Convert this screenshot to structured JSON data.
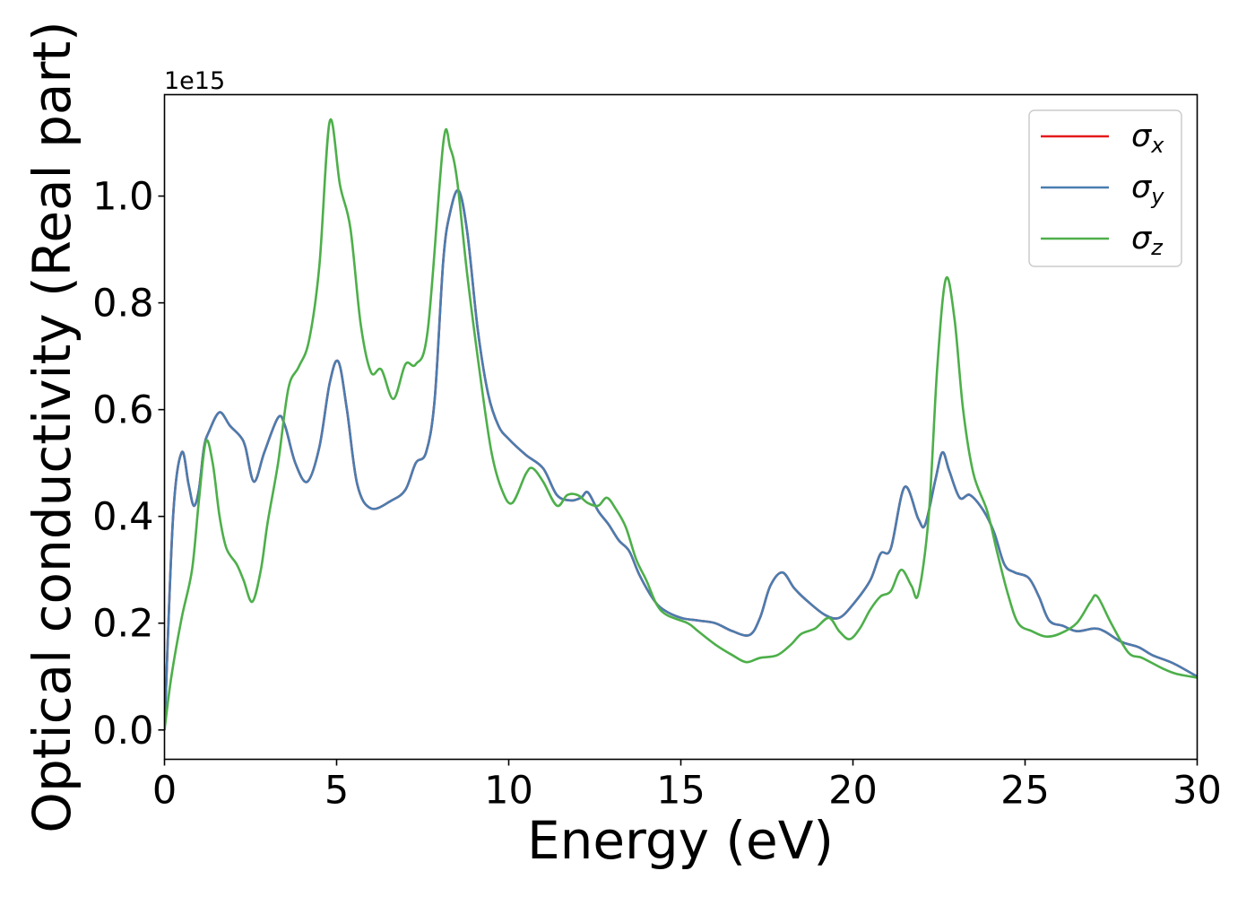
{
  "chart_data": {
    "type": "line",
    "xlabel": "Energy (eV)",
    "ylabel": "Optical conductivity (Real part)",
    "y_offset_text": "1e15",
    "xlim": [
      0,
      30
    ],
    "ylim": [
      -0.055,
      1.19
    ],
    "x_ticks": [
      0,
      5,
      10,
      15,
      20,
      25,
      30
    ],
    "x_tick_labels": [
      "0",
      "5",
      "10",
      "15",
      "20",
      "25",
      "30"
    ],
    "y_ticks": [
      0.0,
      0.2,
      0.4,
      0.6,
      0.8,
      1.0
    ],
    "y_tick_labels": [
      "0.0",
      "0.2",
      "0.4",
      "0.6",
      "0.8",
      "1.0"
    ],
    "grid": false,
    "legend_position": "top-right",
    "series": [
      {
        "name": "σx",
        "symbol": "σ",
        "subscript": "x",
        "color": "#e41a1c",
        "points": [
          [
            0,
            0
          ],
          [
            0.25,
            0.4
          ],
          [
            0.5,
            0.52
          ],
          [
            0.7,
            0.46
          ],
          [
            0.85,
            0.42
          ],
          [
            1.0,
            0.45
          ],
          [
            1.15,
            0.53
          ],
          [
            1.3,
            0.56
          ],
          [
            1.6,
            0.595
          ],
          [
            1.9,
            0.57
          ],
          [
            2.2,
            0.55
          ],
          [
            2.35,
            0.53
          ],
          [
            2.6,
            0.465
          ],
          [
            2.9,
            0.52
          ],
          [
            3.3,
            0.585
          ],
          [
            3.5,
            0.57
          ],
          [
            3.8,
            0.5
          ],
          [
            4.15,
            0.465
          ],
          [
            4.5,
            0.53
          ],
          [
            4.8,
            0.65
          ],
          [
            5.05,
            0.69
          ],
          [
            5.3,
            0.6
          ],
          [
            5.6,
            0.46
          ],
          [
            6.0,
            0.415
          ],
          [
            6.6,
            0.43
          ],
          [
            7.0,
            0.45
          ],
          [
            7.3,
            0.5
          ],
          [
            7.6,
            0.52
          ],
          [
            7.85,
            0.62
          ],
          [
            8.1,
            0.88
          ],
          [
            8.3,
            0.97
          ],
          [
            8.55,
            1.01
          ],
          [
            8.8,
            0.93
          ],
          [
            9.1,
            0.75
          ],
          [
            9.4,
            0.63
          ],
          [
            9.7,
            0.57
          ],
          [
            10.0,
            0.545
          ],
          [
            10.5,
            0.515
          ],
          [
            11.0,
            0.49
          ],
          [
            11.4,
            0.44
          ],
          [
            11.8,
            0.43
          ],
          [
            12.1,
            0.435
          ],
          [
            12.3,
            0.445
          ],
          [
            12.6,
            0.41
          ],
          [
            12.9,
            0.385
          ],
          [
            13.2,
            0.355
          ],
          [
            13.5,
            0.335
          ],
          [
            13.8,
            0.29
          ],
          [
            14.2,
            0.245
          ],
          [
            14.5,
            0.225
          ],
          [
            15.0,
            0.21
          ],
          [
            15.5,
            0.205
          ],
          [
            16.0,
            0.2
          ],
          [
            16.5,
            0.185
          ],
          [
            17.0,
            0.178
          ],
          [
            17.3,
            0.21
          ],
          [
            17.6,
            0.27
          ],
          [
            17.95,
            0.295
          ],
          [
            18.3,
            0.265
          ],
          [
            18.7,
            0.24
          ],
          [
            19.2,
            0.215
          ],
          [
            19.6,
            0.21
          ],
          [
            20.0,
            0.235
          ],
          [
            20.5,
            0.28
          ],
          [
            20.8,
            0.33
          ],
          [
            21.1,
            0.34
          ],
          [
            21.5,
            0.455
          ],
          [
            21.9,
            0.395
          ],
          [
            22.1,
            0.385
          ],
          [
            22.4,
            0.47
          ],
          [
            22.6,
            0.52
          ],
          [
            22.8,
            0.485
          ],
          [
            23.1,
            0.435
          ],
          [
            23.4,
            0.44
          ],
          [
            23.8,
            0.41
          ],
          [
            24.1,
            0.37
          ],
          [
            24.4,
            0.31
          ],
          [
            24.7,
            0.295
          ],
          [
            25.1,
            0.285
          ],
          [
            25.4,
            0.25
          ],
          [
            25.7,
            0.205
          ],
          [
            26.1,
            0.195
          ],
          [
            26.5,
            0.185
          ],
          [
            27.0,
            0.19
          ],
          [
            27.3,
            0.185
          ],
          [
            27.8,
            0.165
          ],
          [
            28.3,
            0.155
          ],
          [
            28.7,
            0.14
          ],
          [
            29.3,
            0.125
          ],
          [
            30.0,
            0.1
          ]
        ]
      },
      {
        "name": "σy",
        "symbol": "σ",
        "subscript": "y",
        "color": "#4a7db0",
        "points": [
          [
            0,
            0
          ],
          [
            0.25,
            0.4
          ],
          [
            0.5,
            0.52
          ],
          [
            0.7,
            0.46
          ],
          [
            0.85,
            0.42
          ],
          [
            1.0,
            0.45
          ],
          [
            1.15,
            0.53
          ],
          [
            1.3,
            0.56
          ],
          [
            1.6,
            0.595
          ],
          [
            1.9,
            0.57
          ],
          [
            2.2,
            0.55
          ],
          [
            2.35,
            0.53
          ],
          [
            2.6,
            0.465
          ],
          [
            2.9,
            0.52
          ],
          [
            3.3,
            0.585
          ],
          [
            3.5,
            0.57
          ],
          [
            3.8,
            0.5
          ],
          [
            4.15,
            0.465
          ],
          [
            4.5,
            0.53
          ],
          [
            4.8,
            0.65
          ],
          [
            5.05,
            0.69
          ],
          [
            5.3,
            0.6
          ],
          [
            5.6,
            0.46
          ],
          [
            6.0,
            0.415
          ],
          [
            6.6,
            0.43
          ],
          [
            7.0,
            0.45
          ],
          [
            7.3,
            0.5
          ],
          [
            7.6,
            0.52
          ],
          [
            7.85,
            0.62
          ],
          [
            8.1,
            0.88
          ],
          [
            8.3,
            0.97
          ],
          [
            8.55,
            1.01
          ],
          [
            8.8,
            0.93
          ],
          [
            9.1,
            0.75
          ],
          [
            9.4,
            0.63
          ],
          [
            9.7,
            0.57
          ],
          [
            10.0,
            0.545
          ],
          [
            10.5,
            0.515
          ],
          [
            11.0,
            0.49
          ],
          [
            11.4,
            0.44
          ],
          [
            11.8,
            0.43
          ],
          [
            12.1,
            0.435
          ],
          [
            12.3,
            0.445
          ],
          [
            12.6,
            0.41
          ],
          [
            12.9,
            0.385
          ],
          [
            13.2,
            0.355
          ],
          [
            13.5,
            0.335
          ],
          [
            13.8,
            0.29
          ],
          [
            14.2,
            0.245
          ],
          [
            14.5,
            0.225
          ],
          [
            15.0,
            0.21
          ],
          [
            15.5,
            0.205
          ],
          [
            16.0,
            0.2
          ],
          [
            16.5,
            0.185
          ],
          [
            17.0,
            0.178
          ],
          [
            17.3,
            0.21
          ],
          [
            17.6,
            0.27
          ],
          [
            17.95,
            0.295
          ],
          [
            18.3,
            0.265
          ],
          [
            18.7,
            0.24
          ],
          [
            19.2,
            0.215
          ],
          [
            19.6,
            0.21
          ],
          [
            20.0,
            0.235
          ],
          [
            20.5,
            0.28
          ],
          [
            20.8,
            0.33
          ],
          [
            21.1,
            0.34
          ],
          [
            21.5,
            0.455
          ],
          [
            21.9,
            0.395
          ],
          [
            22.1,
            0.385
          ],
          [
            22.4,
            0.47
          ],
          [
            22.6,
            0.52
          ],
          [
            22.8,
            0.485
          ],
          [
            23.1,
            0.435
          ],
          [
            23.4,
            0.44
          ],
          [
            23.8,
            0.41
          ],
          [
            24.1,
            0.37
          ],
          [
            24.4,
            0.31
          ],
          [
            24.7,
            0.295
          ],
          [
            25.1,
            0.285
          ],
          [
            25.4,
            0.25
          ],
          [
            25.7,
            0.205
          ],
          [
            26.1,
            0.195
          ],
          [
            26.5,
            0.185
          ],
          [
            27.0,
            0.19
          ],
          [
            27.3,
            0.185
          ],
          [
            27.8,
            0.165
          ],
          [
            28.3,
            0.155
          ],
          [
            28.7,
            0.14
          ],
          [
            29.3,
            0.125
          ],
          [
            30.0,
            0.1
          ]
        ]
      },
      {
        "name": "σz",
        "symbol": "σ",
        "subscript": "z",
        "color": "#4daf4a",
        "points": [
          [
            0,
            0
          ],
          [
            0.2,
            0.1
          ],
          [
            0.5,
            0.21
          ],
          [
            0.8,
            0.3
          ],
          [
            1.0,
            0.43
          ],
          [
            1.2,
            0.54
          ],
          [
            1.4,
            0.5
          ],
          [
            1.6,
            0.4
          ],
          [
            1.8,
            0.34
          ],
          [
            2.1,
            0.31
          ],
          [
            2.3,
            0.28
          ],
          [
            2.55,
            0.24
          ],
          [
            2.8,
            0.3
          ],
          [
            3.0,
            0.39
          ],
          [
            3.3,
            0.5
          ],
          [
            3.6,
            0.64
          ],
          [
            3.9,
            0.68
          ],
          [
            4.2,
            0.73
          ],
          [
            4.5,
            0.87
          ],
          [
            4.8,
            1.14
          ],
          [
            5.1,
            1.02
          ],
          [
            5.4,
            0.94
          ],
          [
            5.7,
            0.76
          ],
          [
            6.0,
            0.67
          ],
          [
            6.3,
            0.675
          ],
          [
            6.65,
            0.62
          ],
          [
            7.0,
            0.685
          ],
          [
            7.3,
            0.685
          ],
          [
            7.65,
            0.75
          ],
          [
            8.1,
            1.1
          ],
          [
            8.3,
            1.09
          ],
          [
            8.5,
            1.03
          ],
          [
            8.8,
            0.85
          ],
          [
            9.2,
            0.65
          ],
          [
            9.5,
            0.52
          ],
          [
            9.8,
            0.45
          ],
          [
            10.1,
            0.425
          ],
          [
            10.5,
            0.48
          ],
          [
            10.7,
            0.49
          ],
          [
            11.0,
            0.465
          ],
          [
            11.4,
            0.42
          ],
          [
            11.7,
            0.44
          ],
          [
            12.0,
            0.44
          ],
          [
            12.3,
            0.425
          ],
          [
            12.6,
            0.42
          ],
          [
            12.85,
            0.435
          ],
          [
            13.1,
            0.415
          ],
          [
            13.4,
            0.38
          ],
          [
            13.7,
            0.32
          ],
          [
            14.0,
            0.28
          ],
          [
            14.3,
            0.235
          ],
          [
            14.6,
            0.215
          ],
          [
            15.2,
            0.2
          ],
          [
            15.5,
            0.185
          ],
          [
            16.0,
            0.16
          ],
          [
            16.5,
            0.14
          ],
          [
            16.9,
            0.127
          ],
          [
            17.3,
            0.135
          ],
          [
            17.8,
            0.14
          ],
          [
            18.2,
            0.16
          ],
          [
            18.5,
            0.18
          ],
          [
            18.9,
            0.19
          ],
          [
            19.3,
            0.21
          ],
          [
            19.6,
            0.185
          ],
          [
            19.9,
            0.17
          ],
          [
            20.2,
            0.19
          ],
          [
            20.5,
            0.225
          ],
          [
            20.8,
            0.25
          ],
          [
            21.1,
            0.26
          ],
          [
            21.4,
            0.3
          ],
          [
            21.7,
            0.27
          ],
          [
            21.9,
            0.255
          ],
          [
            22.2,
            0.4
          ],
          [
            22.45,
            0.68
          ],
          [
            22.7,
            0.845
          ],
          [
            22.95,
            0.77
          ],
          [
            23.2,
            0.6
          ],
          [
            23.5,
            0.48
          ],
          [
            23.9,
            0.41
          ],
          [
            24.2,
            0.33
          ],
          [
            24.5,
            0.255
          ],
          [
            24.8,
            0.2
          ],
          [
            25.2,
            0.185
          ],
          [
            25.6,
            0.175
          ],
          [
            26.0,
            0.18
          ],
          [
            26.5,
            0.2
          ],
          [
            26.9,
            0.24
          ],
          [
            27.1,
            0.25
          ],
          [
            27.5,
            0.2
          ],
          [
            28.0,
            0.145
          ],
          [
            28.4,
            0.135
          ],
          [
            29.0,
            0.115
          ],
          [
            29.4,
            0.105
          ],
          [
            30.0,
            0.098
          ]
        ]
      }
    ]
  }
}
